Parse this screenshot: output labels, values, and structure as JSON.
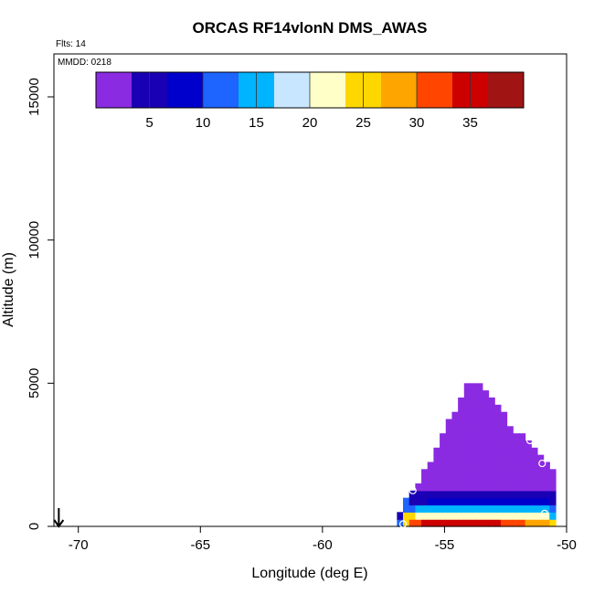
{
  "chart_data": {
    "type": "heatmap",
    "title": "ORCAS RF14vlonN DMS_AWAS",
    "annotations": {
      "flights": "Flts: 14",
      "date": "MMDD: 0218"
    },
    "xlabel": "Longitude (deg E)",
    "ylabel": "Altitude (m)",
    "xlim": [
      -71,
      -50
    ],
    "ylim": [
      0,
      16500
    ],
    "xticks": [
      -70,
      -65,
      -60,
      -55,
      -50
    ],
    "yticks": [
      0,
      5000,
      10000,
      15000
    ],
    "colorbar": {
      "range": [
        0,
        40
      ],
      "ticks": [
        5,
        10,
        15,
        20,
        25,
        30,
        35
      ],
      "colors": [
        "#8a2be2",
        "#1a00b4",
        "#0000cd",
        "#1e64ff",
        "#00b4ff",
        "#c8e6ff",
        "#ffffc8",
        "#ffd700",
        "#ffa500",
        "#ff4500",
        "#cd0000",
        "#a01414"
      ],
      "placement": "top"
    },
    "cells": {
      "lon_start": -57.2,
      "lon_step": 0.25,
      "alt_step": 250,
      "columns": [
        [
          0,
          0,
          0,
          0,
          0,
          0,
          0,
          0,
          0,
          0,
          0,
          0,
          0,
          0,
          0,
          0,
          0,
          0,
          0,
          0
        ],
        [
          10,
          5,
          0,
          0,
          0,
          0,
          0,
          0,
          0,
          0,
          0,
          0,
          0,
          0,
          0,
          0,
          0,
          0,
          0,
          0
        ],
        [
          25,
          25,
          12,
          10,
          0,
          0,
          0,
          0,
          0,
          0,
          0,
          0,
          0,
          0,
          0,
          0,
          0,
          0,
          0,
          0
        ],
        [
          30,
          25,
          13,
          5,
          4,
          0,
          0,
          0,
          0,
          0,
          0,
          0,
          0,
          0,
          0,
          0,
          0,
          0,
          0,
          0
        ],
        [
          32,
          23,
          14,
          6,
          4,
          3,
          0,
          0,
          0,
          0,
          0,
          0,
          0,
          0,
          0,
          0,
          0,
          0,
          0,
          0
        ],
        [
          34,
          22,
          14,
          6,
          4,
          3,
          2,
          2,
          0,
          0,
          0,
          0,
          0,
          0,
          0,
          0,
          0,
          0,
          0,
          0
        ],
        [
          35,
          22,
          14,
          7,
          5,
          3,
          2,
          1,
          1,
          0,
          0,
          0,
          0,
          0,
          0,
          0,
          0,
          0,
          0,
          0
        ],
        [
          35,
          22,
          15,
          7,
          5,
          3,
          2,
          1,
          1,
          1,
          1,
          0,
          0,
          0,
          0,
          0,
          0,
          0,
          0,
          0
        ],
        [
          35,
          21,
          15,
          7,
          5,
          3,
          2,
          1,
          1,
          1,
          1,
          1,
          1,
          0,
          0,
          0,
          0,
          0,
          0,
          0
        ],
        [
          35,
          21,
          15,
          7,
          5,
          3,
          2,
          1,
          1,
          1,
          1,
          1,
          1,
          1,
          1,
          0,
          0,
          0,
          0,
          0
        ],
        [
          36,
          21,
          14,
          7,
          5,
          3,
          2,
          1,
          1,
          1,
          1,
          1,
          1,
          1,
          1,
          1,
          0,
          0,
          0,
          0
        ],
        [
          36,
          21,
          14,
          7,
          5,
          3,
          2,
          1,
          1,
          1,
          1,
          1,
          1,
          1,
          1,
          1,
          1,
          1,
          0,
          0
        ],
        [
          36,
          21,
          14,
          7,
          5,
          3,
          2,
          1,
          1,
          1,
          1,
          1,
          1,
          1,
          1,
          1,
          1,
          1,
          1,
          1
        ],
        [
          36,
          21,
          14,
          7,
          5,
          3,
          2,
          1,
          1,
          1,
          1,
          1,
          1,
          1,
          1,
          1,
          1,
          1,
          1,
          1
        ],
        [
          36,
          21,
          14,
          7,
          5,
          3,
          2,
          1,
          1,
          1,
          1,
          1,
          1,
          1,
          1,
          1,
          1,
          1,
          1,
          1
        ],
        [
          35,
          21,
          14,
          7,
          5,
          3,
          2,
          1,
          1,
          1,
          1,
          1,
          1,
          1,
          1,
          1,
          1,
          1,
          1,
          0
        ],
        [
          35,
          21,
          14,
          7,
          5,
          3,
          2,
          1,
          1,
          1,
          1,
          1,
          1,
          1,
          1,
          1,
          1,
          1,
          0,
          0
        ],
        [
          34,
          21,
          14,
          7,
          5,
          3,
          2,
          1,
          1,
          1,
          1,
          1,
          1,
          1,
          1,
          1,
          1,
          0,
          0,
          0
        ],
        [
          33,
          21,
          14,
          7,
          5,
          3,
          2,
          1,
          1,
          1,
          1,
          1,
          1,
          1,
          1,
          1,
          0,
          0,
          0,
          0
        ],
        [
          32,
          21,
          14,
          7,
          5,
          3,
          2,
          1,
          1,
          1,
          1,
          1,
          1,
          1,
          0,
          0,
          0,
          0,
          0,
          0
        ],
        [
          31,
          21,
          14,
          7,
          5,
          3,
          2,
          1,
          1,
          1,
          1,
          1,
          1,
          0,
          0,
          0,
          0,
          0,
          0,
          0
        ],
        [
          30,
          21,
          14,
          7,
          5,
          3,
          2,
          1,
          1,
          1,
          1,
          1,
          1,
          0,
          0,
          0,
          0,
          0,
          0,
          0
        ],
        [
          29,
          21,
          14,
          7,
          5,
          3,
          2,
          1,
          1,
          1,
          1,
          1,
          0,
          0,
          0,
          0,
          0,
          0,
          0,
          0
        ],
        [
          28,
          21,
          14,
          7,
          5,
          3,
          2,
          1,
          1,
          1,
          1,
          0,
          0,
          0,
          0,
          0,
          0,
          0,
          0,
          0
        ],
        [
          27,
          21,
          14,
          7,
          5,
          3,
          2,
          1,
          1,
          1,
          0,
          0,
          0,
          0,
          0,
          0,
          0,
          0,
          0,
          0
        ],
        [
          27,
          21,
          14,
          7,
          5,
          3,
          1,
          1,
          1,
          0,
          0,
          0,
          0,
          0,
          0,
          0,
          0,
          0,
          0,
          0
        ],
        [
          26,
          14,
          12,
          6,
          4,
          3,
          1,
          1,
          0,
          0,
          0,
          0,
          0,
          0,
          0,
          0,
          0,
          0,
          0,
          0
        ]
      ]
    },
    "sample_points": [
      {
        "lon": -56.7,
        "alt": 80
      },
      {
        "lon": -56.3,
        "alt": 1250
      },
      {
        "lon": -55.6,
        "alt": 2950
      },
      {
        "lon": -54.8,
        "alt": 4800
      },
      {
        "lon": -51.5,
        "alt": 3000
      },
      {
        "lon": -51.0,
        "alt": 2200
      },
      {
        "lon": -50.9,
        "alt": 450
      }
    ],
    "arrow_marker": {
      "lon": -70.8,
      "alt": 0
    }
  }
}
